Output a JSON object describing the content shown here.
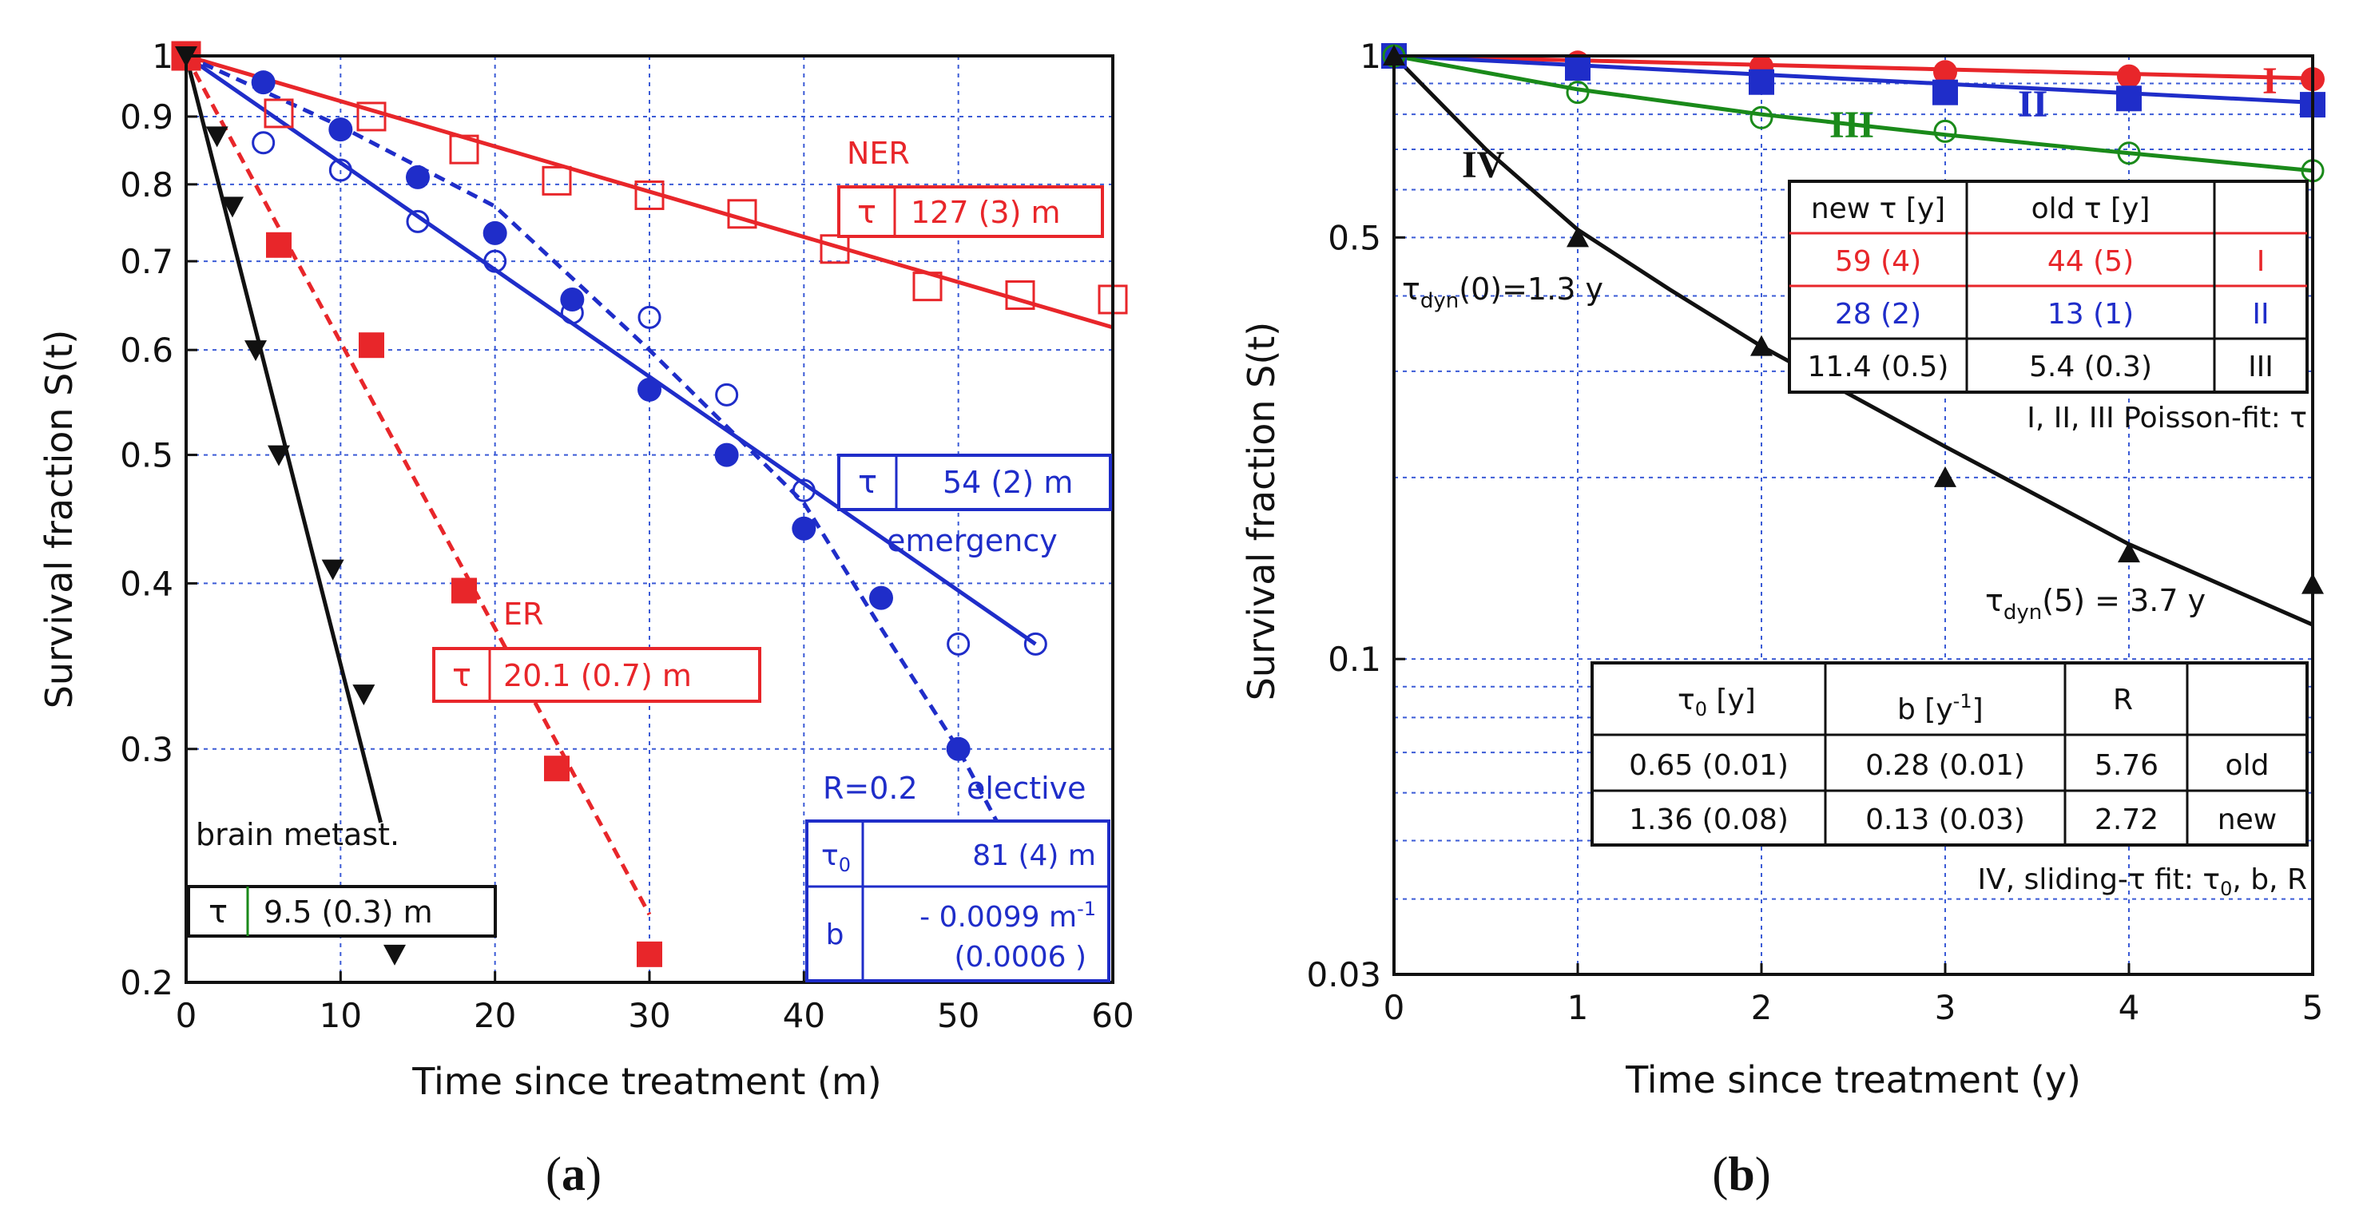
{
  "chart_data": [
    {
      "panel": "(a)",
      "type": "scatter",
      "yscale": "log",
      "xlabel": "Time since treatment (m)",
      "ylabel": "Survival fraction S(t)",
      "xlim": [
        0,
        60
      ],
      "ylim": [
        0.2,
        1
      ],
      "xticks": [
        "0",
        "10",
        "20",
        "30",
        "40",
        "50",
        "60"
      ],
      "yticks": [
        {
          "v": 1,
          "label": "1"
        },
        {
          "v": 0.9,
          "label": "0.9"
        },
        {
          "v": 0.8,
          "label": "0.8"
        },
        {
          "v": 0.7,
          "label": "0.7"
        },
        {
          "v": 0.6,
          "label": "0.6"
        },
        {
          "v": 0.5,
          "label": "0.5"
        },
        {
          "v": 0.4,
          "label": "0.4"
        },
        {
          "v": 0.3,
          "label": "0.3"
        },
        {
          "v": 0.2,
          "label": "0.2"
        }
      ],
      "series": [
        {
          "name": "NER",
          "color": "#e8262a",
          "marker": "open-square",
          "x": [
            0,
            6,
            12,
            18,
            24,
            30,
            36,
            42,
            48,
            54,
            60
          ],
          "y": [
            1,
            0.905,
            0.9,
            0.85,
            0.805,
            0.785,
            0.76,
            0.715,
            0.67,
            0.66,
            0.655
          ],
          "fit": {
            "style": "solid",
            "x": [
              0,
              60
            ],
            "y": [
              1,
              0.624
            ]
          }
        },
        {
          "name": "emergency",
          "color": "#1f2dc9",
          "marker": "open-circle",
          "x": [
            0,
            5,
            10,
            15,
            20,
            25,
            30,
            35,
            40,
            50,
            55
          ],
          "y": [
            1,
            0.86,
            0.82,
            0.75,
            0.7,
            0.64,
            0.635,
            0.555,
            0.47,
            0.36,
            0.36
          ],
          "fit": {
            "style": "solid",
            "x": [
              0,
              55
            ],
            "y": [
              1,
              0.36
            ]
          }
        },
        {
          "name": "elective",
          "color": "#1f2dc9",
          "marker": "filled-circle",
          "x": [
            0,
            5,
            10,
            15,
            20,
            25,
            30,
            35,
            40,
            45,
            50
          ],
          "y": [
            1,
            0.955,
            0.88,
            0.81,
            0.735,
            0.655,
            0.56,
            0.5,
            0.44,
            0.39,
            0.3
          ],
          "fit": {
            "style": "dashed",
            "x": [
              0,
              10,
              20,
              30,
              40,
              45,
              50,
              54
            ],
            "y": [
              1,
              0.885,
              0.77,
              0.6,
              0.46,
              0.37,
              0.3,
              0.245
            ]
          }
        },
        {
          "name": "ER",
          "color": "#e8262a",
          "marker": "filled-square",
          "x": [
            0,
            6,
            12,
            18,
            24,
            30
          ],
          "y": [
            1,
            0.72,
            0.605,
            0.395,
            0.29,
            0.21
          ],
          "fit": {
            "style": "dashed",
            "x": [
              0,
              30
            ],
            "y": [
              1,
              0.225
            ]
          }
        },
        {
          "name": "brain metast.",
          "color": "#111111",
          "marker": "filled-triangle-down",
          "x": [
            0,
            2,
            3,
            4.5,
            6,
            9.5,
            11.5,
            13.5
          ],
          "y": [
            1,
            0.87,
            0.77,
            0.6,
            0.5,
            0.41,
            0.33,
            0.21
          ],
          "fit": {
            "style": "solid",
            "x": [
              0,
              12.6
            ],
            "y": [
              1,
              0.264
            ]
          }
        }
      ],
      "annotations": {
        "ner_label": "NER",
        "er_label": "ER",
        "emergency_label": "emergency",
        "elective_label": "elective",
        "brain_label": "brain metast.",
        "r_label": "R=0.2",
        "tau_symbol": "τ",
        "tau_zero_symbol": "τ",
        "tau_zero_sub": "0",
        "b_symbol": "b",
        "ner_tau": "127 (3) m",
        "emergency_tau": "54 (2) m",
        "er_tau": "20.1 (0.7) m",
        "brain_tau": "9.5 (0.3) m",
        "elective_tau0": "81 (4) m",
        "elective_b_line1": "- 0.0099 m",
        "elective_b_exp": "-1",
        "elective_b_line2": "(0.0006 )"
      }
    },
    {
      "panel": "(b)",
      "type": "scatter",
      "yscale": "log",
      "xlabel": "Time since treatment (y)",
      "ylabel": "Survival fraction S(t)",
      "xlim": [
        0,
        5
      ],
      "ylim": [
        0.03,
        1
      ],
      "xticks": [
        "0",
        "1",
        "2",
        "3",
        "4",
        "5"
      ],
      "yticks": [
        {
          "v": 1,
          "label": "1"
        },
        {
          "v": 0.5,
          "label": "0.5"
        },
        {
          "v": 0.1,
          "label": "0.1"
        },
        {
          "v": 0.03,
          "label": "0.03"
        }
      ],
      "series": [
        {
          "name": "I",
          "color": "#e8262a",
          "marker": "filled-circle",
          "x": [
            0,
            1,
            2,
            3,
            4,
            5
          ],
          "y": [
            1,
            0.975,
            0.96,
            0.94,
            0.925,
            0.915
          ],
          "fit": {
            "style": "solid",
            "x": [
              0,
              5
            ],
            "y": [
              1,
              0.918
            ]
          }
        },
        {
          "name": "II",
          "color": "#1f2dc9",
          "marker": "filled-square",
          "x": [
            0,
            1,
            2,
            3,
            4,
            5
          ],
          "y": [
            1,
            0.955,
            0.905,
            0.87,
            0.85,
            0.83
          ],
          "fit": {
            "style": "solid",
            "x": [
              0,
              5
            ],
            "y": [
              1,
              0.837
            ]
          }
        },
        {
          "name": "III",
          "color": "#1a8a1a",
          "marker": "open-circle",
          "x": [
            0,
            1,
            2,
            3,
            4,
            5
          ],
          "y": [
            1,
            0.87,
            0.79,
            0.75,
            0.69,
            0.645
          ],
          "fit": {
            "style": "solid",
            "x": [
              0,
              1,
              2,
              3,
              4,
              5
            ],
            "y": [
              1,
              0.88,
              0.8,
              0.74,
              0.69,
              0.645
            ]
          }
        },
        {
          "name": "IV",
          "color": "#111111",
          "marker": "filled-triangle-up",
          "x": [
            0,
            1,
            2,
            3,
            4,
            5
          ],
          "y": [
            1,
            0.5,
            0.33,
            0.2,
            0.15,
            0.133
          ],
          "fit": {
            "style": "solid",
            "x": [
              0,
              0.5,
              1,
              1.5,
              2,
              3,
              4,
              5
            ],
            "y": [
              1,
              0.7,
              0.515,
              0.41,
              0.33,
              0.225,
              0.155,
              0.114
            ]
          }
        }
      ],
      "annotations": {
        "I_label": "I",
        "II_label": "II",
        "III_label": "III",
        "IV_label": "IV",
        "tdyn0_tau": "τ",
        "tdyn0_sub": "dyn",
        "tdyn0_val": "(0)=1.3 y",
        "tdyn5_tau": "τ",
        "tdyn5_sub": "dyn",
        "tdyn5_val": "(5) = 3.7 y",
        "poisson_caption": "I, II, III Poisson-fit: τ",
        "sliding_caption_a": "IV, sliding-τ fit: τ",
        "sliding_caption_sub": "0",
        "sliding_caption_b": ", b, R"
      },
      "poisson_table": {
        "headers": [
          "new τ [y]",
          "old τ [y]",
          ""
        ],
        "rows": [
          {
            "cells": [
              "59 (4)",
              "44 (5)",
              "I"
            ],
            "color": "#e8262a"
          },
          {
            "cells": [
              "28 (2)",
              "13 (1)",
              "II"
            ],
            "color": "#1f2dc9"
          },
          {
            "cells": [
              "11.4 (0.5)",
              "5.4 (0.3)",
              "III"
            ],
            "color": "#111111"
          }
        ]
      },
      "sliding_table": {
        "h_tau": "τ",
        "h_tau_sub": "0",
        "h_tau_unit": " [y]",
        "h_b": "b [y",
        "h_b_exp": "-1",
        "h_b_close": "]",
        "h_r": "R",
        "h_last": "",
        "rows": [
          [
            "0.65 (0.01)",
            "0.28 (0.01)",
            "5.76",
            "old"
          ],
          [
            "1.36 (0.08)",
            "0.13 (0.03)",
            "2.72",
            "new"
          ]
        ]
      }
    }
  ],
  "captions": {
    "a": "a",
    "b": "b",
    "open": "(",
    "close": ")"
  }
}
